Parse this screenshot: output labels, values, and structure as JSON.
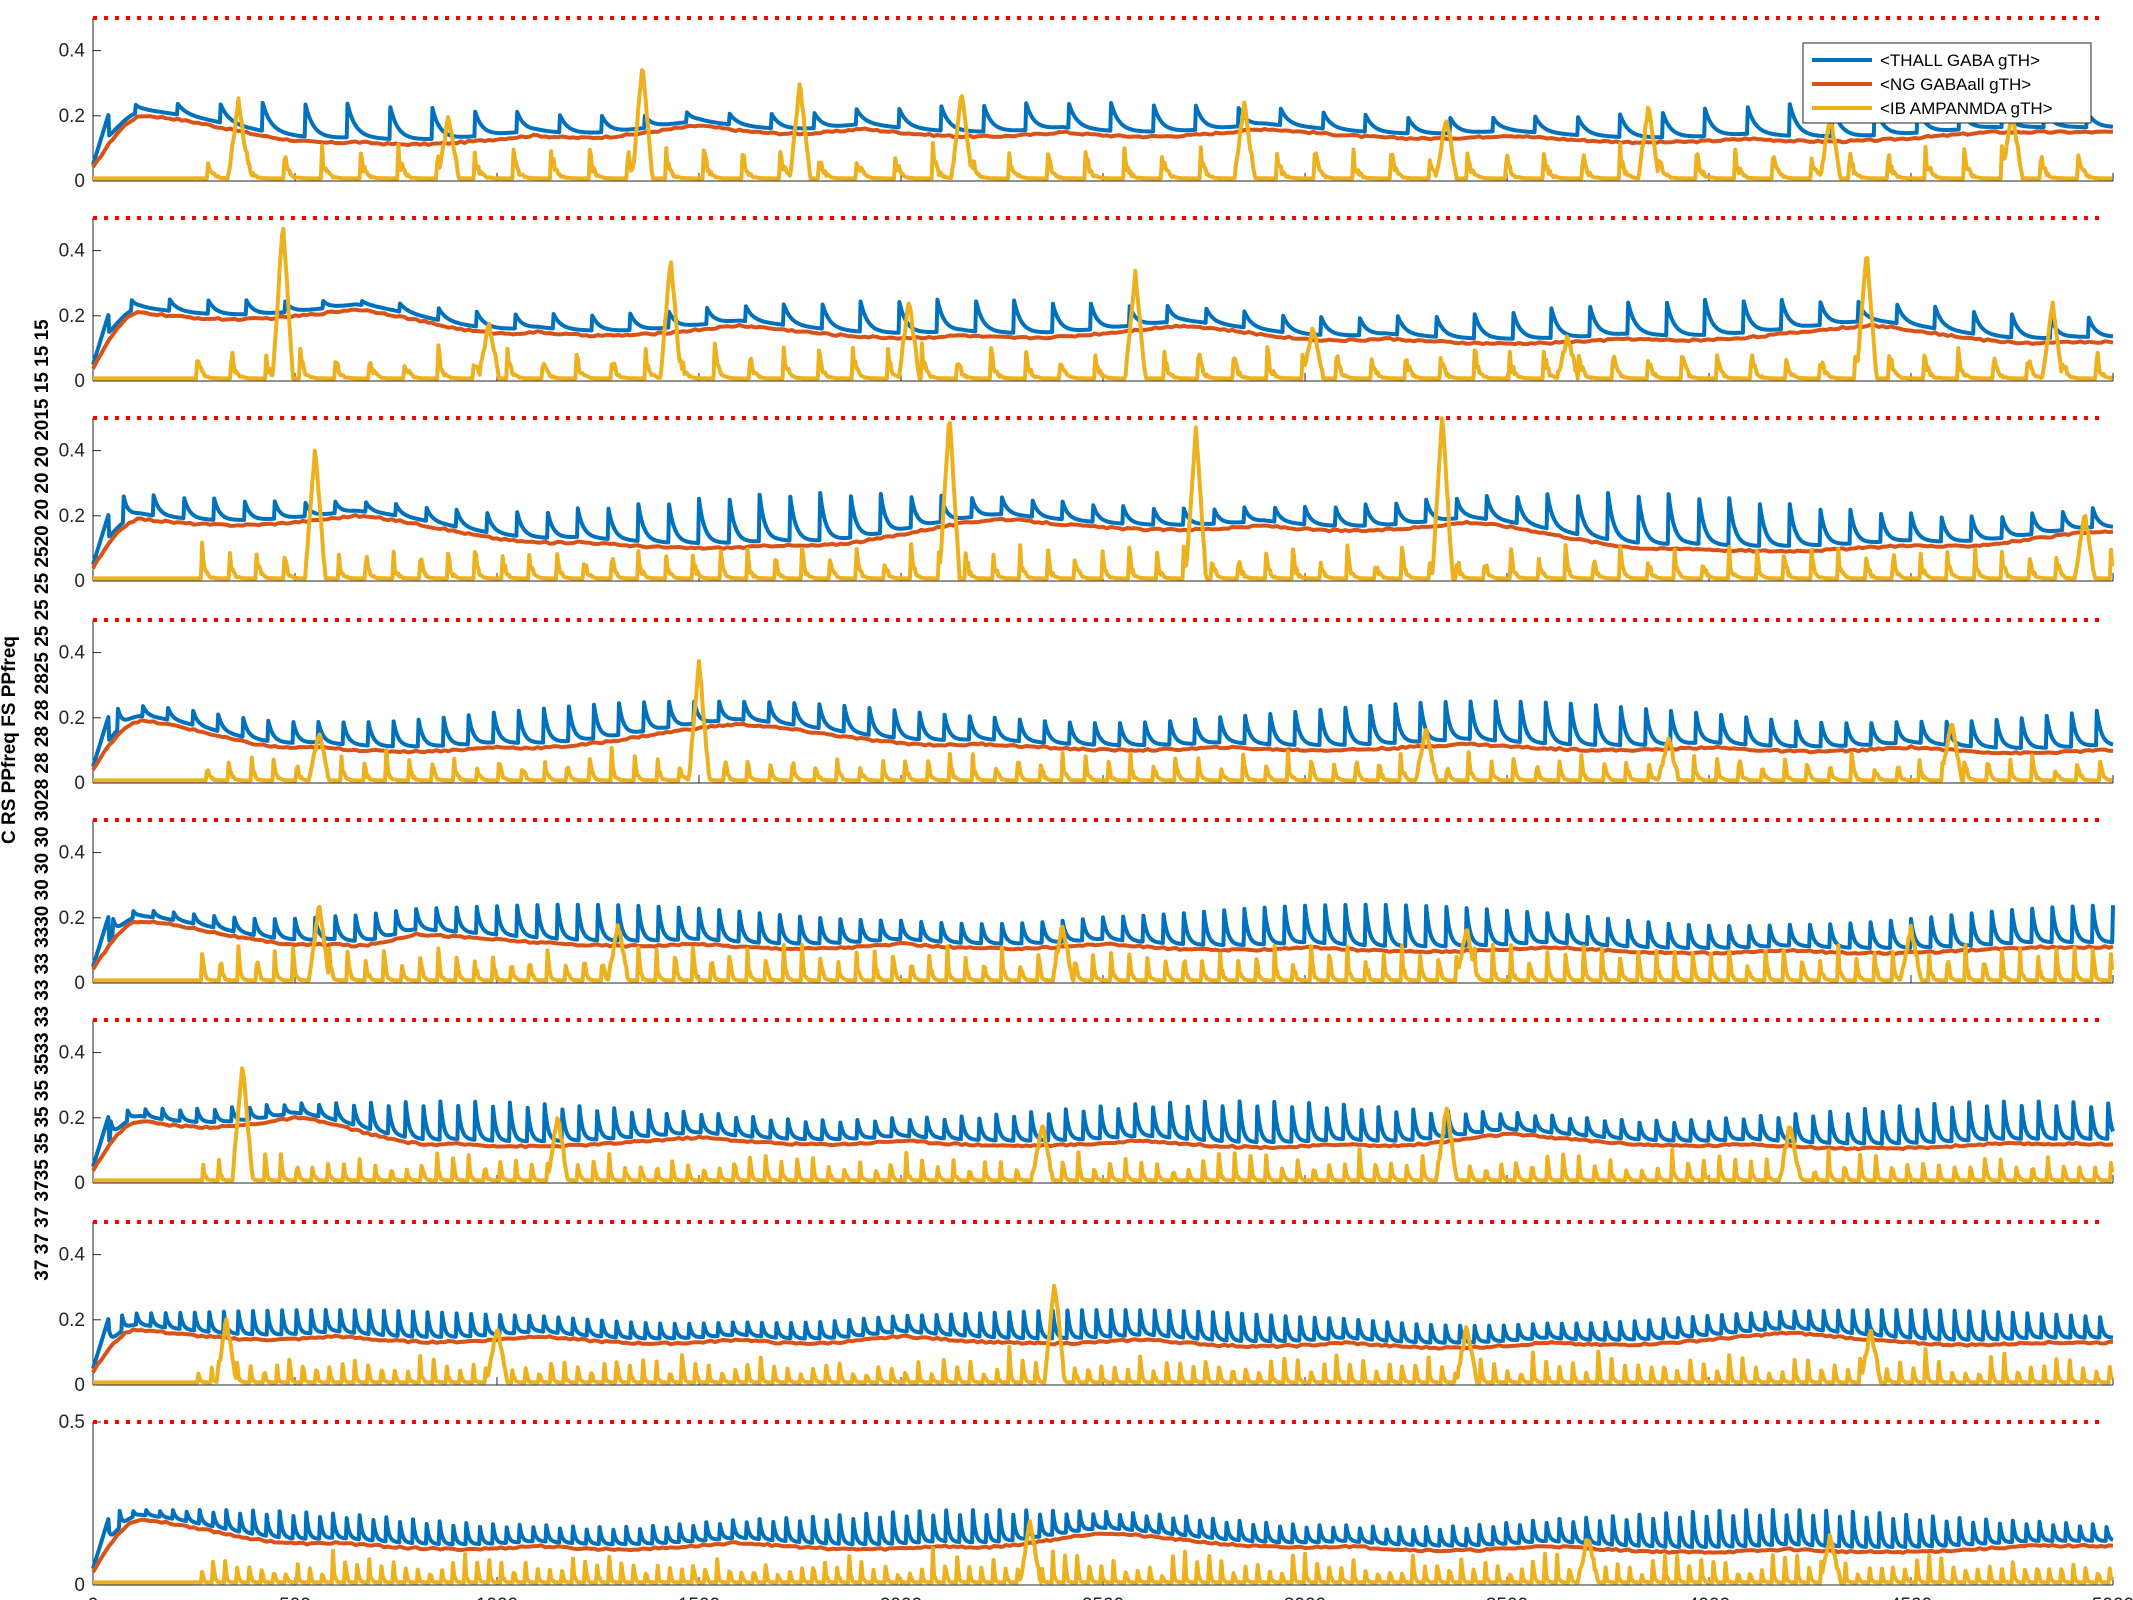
{
  "y_axis_label": "37 37 37 3735 35 35 35 3533 33 33 33 3330 30 30 30 3028 28 28 28 2825 25 25 25 2520 20 20 20 2015 15 15 15",
  "y_axis_label_overlay": "C RS PPfreq FS PPfreq",
  "legend": [
    {
      "label": "<THALL GABA gTH>",
      "color": "#0072BD"
    },
    {
      "label": "<NG GABAall gTH>",
      "color": "#D95319"
    },
    {
      "label": "<IB AMPANMDA gTH>",
      "color": "#EDB120"
    }
  ],
  "chart_data": {
    "type": "line",
    "x_range": [
      0,
      5000
    ],
    "x_ticks": [
      0,
      500,
      1000,
      1500,
      2000,
      2500,
      3000,
      3500,
      4000,
      4500,
      5000
    ],
    "threshold_value": 0.5,
    "threshold_color": "#FF0000",
    "series": [
      {
        "name": "<THALL GABA gTH>",
        "color": "#0072BD"
      },
      {
        "name": "<NG GABAall gTH>",
        "color": "#D95319"
      },
      {
        "name": "<IB AMPANMDA gTH>",
        "color": "#EDB120"
      }
    ],
    "panels": [
      {
        "y_range": [
          0,
          0.5
        ],
        "y_ticks": [
          "0",
          "0.2",
          "0.4"
        ],
        "thal_period": 105,
        "thal_peak": 0.24,
        "ng_bumps": [
          [
            130,
            0.2
          ],
          [
            650,
            0.12
          ],
          [
            1100,
            0.14
          ],
          [
            1500,
            0.17
          ],
          [
            1900,
            0.16
          ],
          [
            2400,
            0.15
          ],
          [
            2900,
            0.16
          ],
          [
            3500,
            0.14
          ],
          [
            4100,
            0.13
          ],
          [
            4700,
            0.15
          ]
        ],
        "ib_spikes": [
          [
            360,
            0.24
          ],
          [
            880,
            0.19
          ],
          [
            1360,
            0.35
          ],
          [
            1750,
            0.29
          ],
          [
            2150,
            0.27
          ],
          [
            2850,
            0.23
          ],
          [
            3350,
            0.19
          ],
          [
            3850,
            0.22
          ],
          [
            4300,
            0.19
          ],
          [
            4750,
            0.21
          ]
        ]
      },
      {
        "y_range": [
          0,
          0.5
        ],
        "y_ticks": [
          "0",
          "0.2",
          "0.4"
        ],
        "thal_period": 95,
        "thal_peak": 0.25,
        "ng_bumps": [
          [
            120,
            0.21
          ],
          [
            650,
            0.22
          ],
          [
            1100,
            0.15
          ],
          [
            1600,
            0.17
          ],
          [
            2150,
            0.14
          ],
          [
            2700,
            0.17
          ],
          [
            3200,
            0.13
          ],
          [
            3800,
            0.13
          ],
          [
            4400,
            0.17
          ],
          [
            4900,
            0.12
          ]
        ],
        "ib_spikes": [
          [
            470,
            0.48
          ],
          [
            980,
            0.17
          ],
          [
            1430,
            0.37
          ],
          [
            2020,
            0.24
          ],
          [
            2580,
            0.32
          ],
          [
            3020,
            0.16
          ],
          [
            3650,
            0.13
          ],
          [
            4390,
            0.39
          ],
          [
            4850,
            0.23
          ]
        ]
      },
      {
        "y_range": [
          0,
          0.5
        ],
        "y_ticks": [
          "0",
          "0.2",
          "0.4"
        ],
        "thal_period": 75,
        "thal_peak": 0.27,
        "ng_bumps": [
          [
            120,
            0.19
          ],
          [
            650,
            0.2
          ],
          [
            1200,
            0.12
          ],
          [
            1700,
            0.11
          ],
          [
            2250,
            0.19
          ],
          [
            2900,
            0.17
          ],
          [
            3400,
            0.18
          ],
          [
            3950,
            0.1
          ],
          [
            4500,
            0.11
          ],
          [
            4950,
            0.15
          ]
        ],
        "ib_spikes": [
          [
            550,
            0.4
          ],
          [
            2120,
            0.5
          ],
          [
            2730,
            0.46
          ],
          [
            3340,
            0.5
          ],
          [
            4930,
            0.2
          ]
        ]
      },
      {
        "y_range": [
          0,
          0.5
        ],
        "y_ticks": [
          "0",
          "0.2",
          "0.4"
        ],
        "thal_period": 62,
        "thal_peak": 0.25,
        "ng_bumps": [
          [
            120,
            0.19
          ],
          [
            550,
            0.11
          ],
          [
            1000,
            0.11
          ],
          [
            1600,
            0.18
          ],
          [
            2200,
            0.12
          ],
          [
            2800,
            0.11
          ],
          [
            3400,
            0.12
          ],
          [
            4000,
            0.11
          ],
          [
            4500,
            0.11
          ],
          [
            4950,
            0.1
          ]
        ],
        "ib_spikes": [
          [
            560,
            0.15
          ],
          [
            1500,
            0.37
          ],
          [
            3300,
            0.16
          ],
          [
            3900,
            0.13
          ],
          [
            4600,
            0.18
          ]
        ]
      },
      {
        "y_range": [
          0,
          0.5
        ],
        "y_ticks": [
          "0",
          "0.2",
          "0.4"
        ],
        "thal_period": 50,
        "thal_peak": 0.24,
        "ng_bumps": [
          [
            120,
            0.19
          ],
          [
            600,
            0.12
          ],
          [
            800,
            0.15
          ],
          [
            1500,
            0.12
          ],
          [
            2000,
            0.12
          ],
          [
            2500,
            0.12
          ],
          [
            3000,
            0.11
          ],
          [
            3600,
            0.11
          ],
          [
            4200,
            0.1
          ],
          [
            4800,
            0.11
          ]
        ],
        "ib_spikes": [
          [
            560,
            0.23
          ],
          [
            1300,
            0.17
          ],
          [
            2400,
            0.17
          ],
          [
            3400,
            0.16
          ],
          [
            4500,
            0.16
          ]
        ]
      },
      {
        "y_range": [
          0,
          0.5
        ],
        "y_ticks": [
          "0",
          "0.2",
          "0.4"
        ],
        "thal_period": 43,
        "thal_peak": 0.25,
        "ng_bumps": [
          [
            120,
            0.19
          ],
          [
            500,
            0.2
          ],
          [
            900,
            0.12
          ],
          [
            1500,
            0.14
          ],
          [
            2000,
            0.13
          ],
          [
            2600,
            0.13
          ],
          [
            3100,
            0.12
          ],
          [
            3500,
            0.15
          ],
          [
            4100,
            0.12
          ],
          [
            4700,
            0.12
          ]
        ],
        "ib_spikes": [
          [
            370,
            0.36
          ],
          [
            1150,
            0.2
          ],
          [
            2350,
            0.17
          ],
          [
            3350,
            0.23
          ],
          [
            4200,
            0.17
          ]
        ]
      },
      {
        "y_range": [
          0,
          0.5
        ],
        "y_ticks": [
          "0",
          "0.2",
          "0.4"
        ],
        "thal_period": 36,
        "thal_peak": 0.23,
        "ng_bumps": [
          [
            110,
            0.17
          ],
          [
            600,
            0.15
          ],
          [
            1100,
            0.15
          ],
          [
            1600,
            0.14
          ],
          [
            2000,
            0.15
          ],
          [
            2600,
            0.14
          ],
          [
            3100,
            0.13
          ],
          [
            3600,
            0.13
          ],
          [
            4200,
            0.16
          ],
          [
            4800,
            0.13
          ]
        ],
        "ib_spikes": [
          [
            330,
            0.19
          ],
          [
            1000,
            0.17
          ],
          [
            2380,
            0.31
          ],
          [
            3400,
            0.17
          ],
          [
            4400,
            0.16
          ]
        ]
      },
      {
        "y_range": [
          0,
          0.5
        ],
        "y_ticks": [
          "0",
          "0.5"
        ],
        "thal_period": 33,
        "thal_peak": 0.23,
        "ng_bumps": [
          [
            120,
            0.2
          ],
          [
            600,
            0.13
          ],
          [
            1100,
            0.12
          ],
          [
            1600,
            0.13
          ],
          [
            2100,
            0.12
          ],
          [
            2500,
            0.16
          ],
          [
            3100,
            0.12
          ],
          [
            3600,
            0.12
          ],
          [
            4200,
            0.11
          ],
          [
            4800,
            0.12
          ]
        ],
        "ib_spikes": [
          [
            2320,
            0.19
          ],
          [
            3700,
            0.14
          ],
          [
            4300,
            0.14
          ]
        ]
      }
    ]
  }
}
